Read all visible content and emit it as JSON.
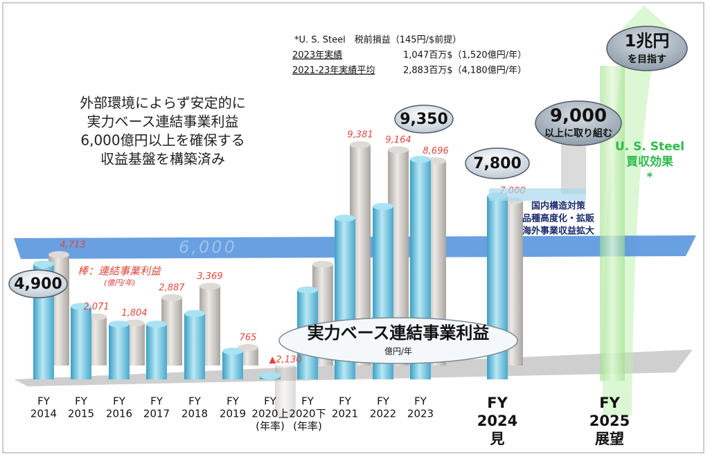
{
  "chart_data": {
    "type": "bar",
    "headline": [
      "外部環境によらず安定的に",
      "実力ベース連結事業利益",
      "6,000億円以上を確保する",
      "収益基盤を構築済み"
    ],
    "categories": [
      [
        "FY",
        "2014"
      ],
      [
        "FY",
        "2015"
      ],
      [
        "FY",
        "2016"
      ],
      [
        "FY",
        "2017"
      ],
      [
        "FY",
        "2018"
      ],
      [
        "FY",
        "2019"
      ],
      [
        "FY",
        "2020上",
        "(年率)"
      ],
      [
        "FY",
        "2020下",
        "(年率)"
      ],
      [
        "FY",
        "2021"
      ],
      [
        "FY",
        "2022"
      ],
      [
        "FY",
        "2023"
      ],
      [
        "FY",
        "2024",
        "見"
      ],
      [
        "FY",
        "2025",
        "展望"
      ]
    ],
    "series": [
      {
        "name": "実力ベース連結事業利益",
        "unit": "億円/年",
        "color": "#6cc6e0",
        "values": [
          4900,
          3100,
          2350,
          2350,
          2800,
          1200,
          150,
          3800,
          6850,
          7350,
          9350,
          7800,
          null
        ],
        "value_labels": [
          "4,900",
          null,
          null,
          null,
          null,
          null,
          null,
          null,
          null,
          null,
          "9,350",
          "7,800",
          null
        ]
      },
      {
        "name": "棒：連結事業利益",
        "unit": "(億円/年)",
        "color": "#c9c5c1",
        "values": [
          4713,
          2071,
          1804,
          2887,
          3369,
          765,
          -2130,
          4300,
          9381,
          9164,
          8696,
          7000,
          null
        ],
        "value_labels": [
          "4,713",
          "2,071",
          "1,804",
          "2,887",
          "3,369",
          "765",
          "▲2,130",
          null,
          "9,381",
          "9,164",
          "8,696",
          "7,000",
          null
        ]
      }
    ],
    "reference_line": {
      "value": 6000,
      "label": "6,000"
    },
    "note": {
      "title": "*U. S. Steel　税前損益（145円/$前提）",
      "rows": [
        [
          "2023年実績",
          "1,047百万$（1,520億円/年）"
        ],
        [
          "2021-23年実績平均",
          "2,883百万$（4,180億円/年）"
        ]
      ]
    },
    "annotations": {
      "target_2025a": [
        "9,000",
        "以上に取り組む"
      ],
      "target_2025b": [
        "1兆円",
        "を目指す"
      ],
      "usx": [
        "U. S. Steel",
        "買収効果",
        "*"
      ],
      "measures": [
        "国内構造対策",
        "品種高度化・拡販",
        "海外事業収益拡大"
      ]
    }
  }
}
